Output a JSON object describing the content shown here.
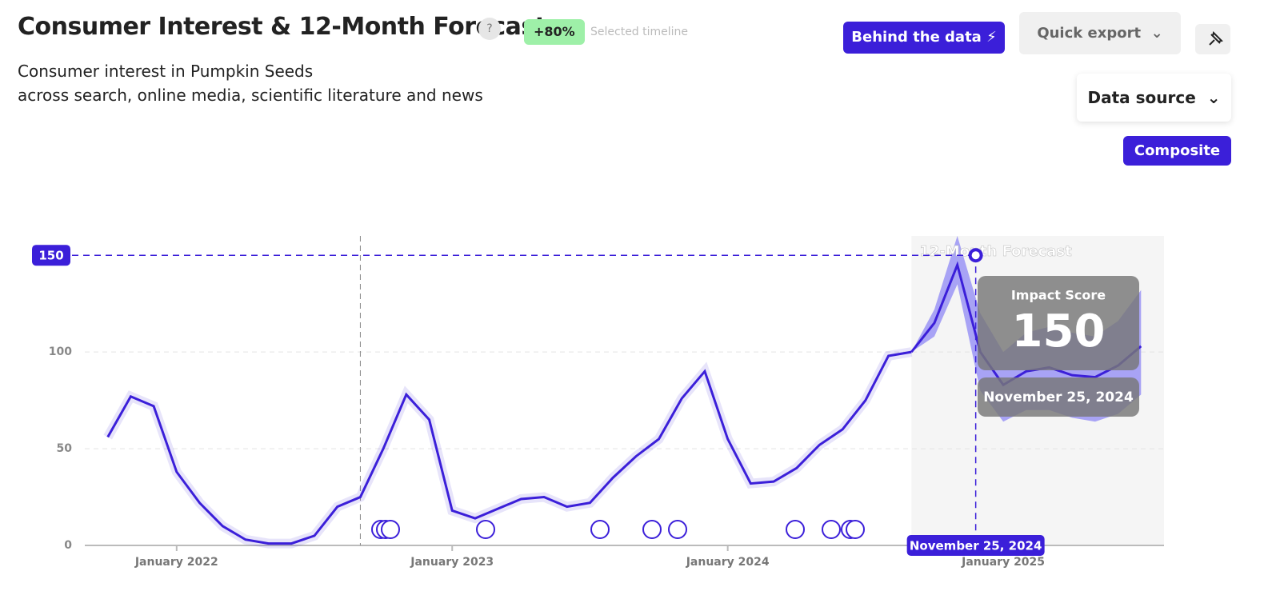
{
  "header": {
    "title": "Consumer Interest & 12-Month Forecast",
    "help": "?",
    "change": "+80%",
    "change_note": "Selected timeline",
    "subtitle": [
      "Consumer interest in Pumpkin Seeds",
      "across search, online media, scientific literature and news"
    ]
  },
  "controls": {
    "behind": "Behind the data",
    "export": "Quick export",
    "source": "Data source",
    "composite": "Composite"
  },
  "chart_data": {
    "type": "line",
    "x": [
      "2021-10",
      "2021-11",
      "2021-12",
      "2022-01",
      "2022-02",
      "2022-03",
      "2022-04",
      "2022-05",
      "2022-06",
      "2022-07",
      "2022-08",
      "2022-09",
      "2022-10",
      "2022-11",
      "2022-12",
      "2023-01",
      "2023-02",
      "2023-03",
      "2023-04",
      "2023-05",
      "2023-06",
      "2023-07",
      "2023-08",
      "2023-09",
      "2023-10",
      "2023-11",
      "2023-12",
      "2024-01",
      "2024-02",
      "2024-03",
      "2024-04",
      "2024-05",
      "2024-06",
      "2024-07",
      "2024-08",
      "2024-09"
    ],
    "series": [
      {
        "name": "Consumer interest",
        "color": "#3b1fd9",
        "values": [
          56,
          77,
          72,
          38,
          22,
          10,
          3,
          1,
          1,
          5,
          20,
          25,
          50,
          78,
          65,
          18,
          14,
          19,
          24,
          25,
          20,
          22,
          35,
          46,
          55,
          76,
          90,
          55,
          32,
          33,
          40,
          52,
          60,
          75,
          98,
          100
        ]
      }
    ],
    "forecast": {
      "name": "12-Month Forecast",
      "color": "#3b1fd9",
      "band_color": "#9a94f5",
      "x": [
        "2024-09",
        "2024-10",
        "2024-11",
        "2024-12",
        "2025-01",
        "2025-02",
        "2025-03",
        "2025-04",
        "2025-05",
        "2025-06",
        "2025-07"
      ],
      "values": [
        100,
        115,
        145,
        100,
        83,
        90,
        92,
        88,
        87,
        93,
        103
      ],
      "lower": [
        100,
        108,
        135,
        80,
        64,
        70,
        70,
        66,
        64,
        68,
        78
      ],
      "upper": [
        100,
        122,
        160,
        120,
        100,
        110,
        113,
        110,
        108,
        116,
        132
      ]
    },
    "highlight": {
      "label": "Impact Score",
      "value": 150,
      "date": "November 25, 2024"
    },
    "xlim": [
      "2021-09",
      "2025-08"
    ],
    "xticks": [
      {
        "value": "2022-01",
        "label": "January 2022"
      },
      {
        "value": "2023-01",
        "label": "January 2023"
      },
      {
        "value": "2024-01",
        "label": "January 2024"
      },
      {
        "value": "2025-01",
        "label": "January 2025"
      }
    ],
    "ylim": [
      0,
      160
    ],
    "yticks": [
      0,
      50,
      100
    ],
    "grid": true,
    "selected_start": "2022-09"
  }
}
